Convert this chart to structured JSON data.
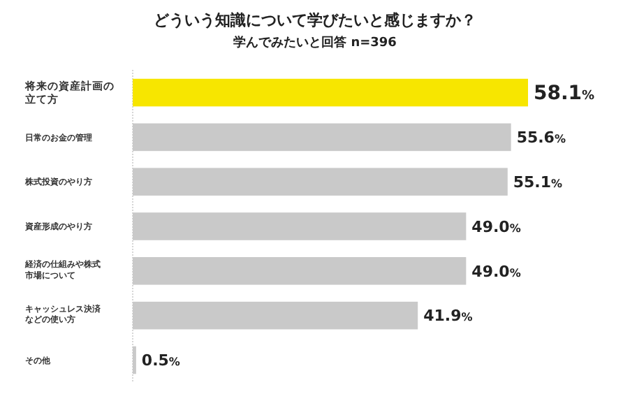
{
  "chart_data": {
    "type": "bar",
    "orientation": "horizontal",
    "title": "どういう知識について学びたいと感じますか？",
    "subtitle": "学んでみたいと回答  n=396",
    "categories": [
      "将来の資産計画の立て方",
      "日常のお金の管理",
      "株式投資のやり方",
      "資産形成のやり方",
      "経済の仕組みや株式市場について",
      "キャッシュレス決済などの使い方",
      "その他"
    ],
    "values": [
      58.1,
      55.6,
      55.1,
      49.0,
      49.0,
      41.9,
      0.5
    ],
    "value_labels": [
      "58.1%",
      "55.6%",
      "55.1%",
      "49.0%",
      "49.0%",
      "41.9%",
      "0.5%"
    ],
    "colors": [
      "#f7e600",
      "#c9c9c9",
      "#c9c9c9",
      "#c9c9c9",
      "#c9c9c9",
      "#c9c9c9",
      "#c9c9c9"
    ]
  }
}
